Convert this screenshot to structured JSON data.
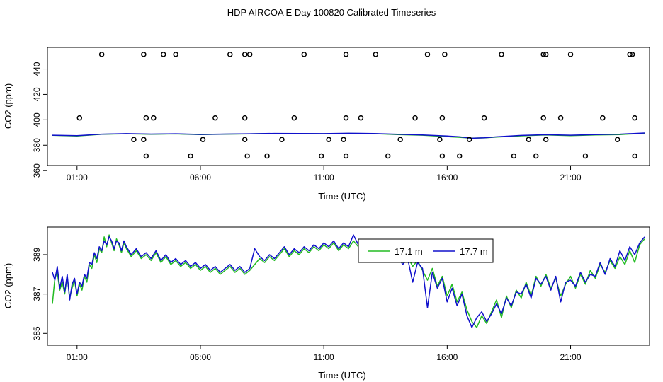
{
  "title": "HDP AIRCOA E  Day 100820  Calibrated Timeseries",
  "colors": {
    "green": "#22bb22",
    "blue": "#1010cc",
    "frame": "#000000"
  },
  "chart_data": [
    {
      "type": "line",
      "xlabel": "Time (UTC)",
      "ylabel": "CO2 (ppm)",
      "x_ticks": [
        1,
        6,
        11,
        16,
        21
      ],
      "x_tick_labels": [
        "01:00",
        "06:00",
        "11:00",
        "16:00",
        "21:00"
      ],
      "xlim": [
        -0.2,
        24.2
      ],
      "y_ticks": [
        360,
        380,
        400,
        420,
        440
      ],
      "y_tick_labels": [
        "360",
        "380",
        "400",
        "420",
        "440"
      ],
      "ylim": [
        364,
        457
      ],
      "series": [
        {
          "color": "#22bb22",
          "x": [
            0,
            1,
            2,
            3,
            4,
            5,
            6,
            7,
            8,
            9,
            10,
            11,
            12,
            13,
            14,
            15,
            16,
            16.5,
            17,
            17.5,
            18,
            19,
            20,
            21,
            22,
            23,
            24
          ],
          "values": [
            387.8,
            387.2,
            388.6,
            389.0,
            388.6,
            388.9,
            388.4,
            388.7,
            388.9,
            389.2,
            389.1,
            389.0,
            389.3,
            389.1,
            388.4,
            387.9,
            386.8,
            386.2,
            385.6,
            385.8,
            386.4,
            387.4,
            388.1,
            387.5,
            388.1,
            388.4,
            389.4
          ]
        },
        {
          "color": "#1010cc",
          "x": [
            0,
            1,
            2,
            3,
            4,
            5,
            6,
            7,
            8,
            9,
            10,
            11,
            12,
            13,
            14,
            15,
            16,
            16.5,
            17,
            17.5,
            18,
            19,
            20,
            21,
            22,
            23,
            24
          ],
          "values": [
            387.9,
            387.5,
            388.7,
            389.1,
            388.8,
            389.0,
            388.5,
            388.8,
            389.0,
            389.3,
            389.2,
            389.1,
            389.4,
            389.2,
            388.6,
            388.1,
            387.2,
            386.6,
            385.5,
            385.9,
            386.6,
            387.7,
            388.3,
            387.9,
            388.4,
            388.7,
            389.6
          ]
        }
      ],
      "markers": {
        "x": [
          1.1,
          2.0,
          4.1,
          3.7,
          3.8,
          3.7,
          3.8,
          3.3,
          4.5,
          5.0,
          6.1,
          6.6,
          5.6,
          7.2,
          7.8,
          7.8,
          7.8,
          7.9,
          8.0,
          8.7,
          9.3,
          9.8,
          10.2,
          10.9,
          11.2,
          11.9,
          11.9,
          11.9,
          11.8,
          12.5,
          13.1,
          13.6,
          14.1,
          14.7,
          15.2,
          15.7,
          15.8,
          15.8,
          15.9,
          16.5,
          16.9,
          17.5,
          18.2,
          18.7,
          19.3,
          19.6,
          19.9,
          19.9,
          20.0,
          20.0,
          20.6,
          21.0,
          21.6,
          22.3,
          22.9,
          23.4,
          23.5,
          23.6,
          23.6
        ],
        "values": [
          401.5,
          451.5,
          401.5,
          451.5,
          401.5,
          384.5,
          371.5,
          384.5,
          451.5,
          451.5,
          384.5,
          401.5,
          371.5,
          451.5,
          451.5,
          401.5,
          384.5,
          371.5,
          451.5,
          371.5,
          384.5,
          401.5,
          451.5,
          371.5,
          384.5,
          401.5,
          451.5,
          371.5,
          384.5,
          401.5,
          451.5,
          371.5,
          384.5,
          401.5,
          451.5,
          384.5,
          371.5,
          401.5,
          451.5,
          371.5,
          384.5,
          401.5,
          451.5,
          371.5,
          384.5,
          371.5,
          401.5,
          451.5,
          384.5,
          451.5,
          401.5,
          451.5,
          371.5,
          401.5,
          384.5,
          451.5,
          451.5,
          401.5,
          371.5
        ]
      }
    },
    {
      "type": "line",
      "xlabel": "Time (UTC)",
      "ylabel": "CO2 (ppm)",
      "x_ticks": [
        1,
        6,
        11,
        16,
        21
      ],
      "x_tick_labels": [
        "01:00",
        "06:00",
        "11:00",
        "16:00",
        "21:00"
      ],
      "xlim": [
        -0.2,
        24.2
      ],
      "y_ticks": [
        385,
        387,
        389
      ],
      "y_tick_labels": [
        "385",
        "387",
        "389"
      ],
      "ylim": [
        384.4,
        390.4
      ],
      "legend": {
        "position": "top-center",
        "labels": [
          "17.1 m",
          "17.7 m"
        ]
      },
      "series": [
        {
          "name": "17.1 m",
          "color": "#22bb22",
          "x": [
            0.0,
            0.1,
            0.2,
            0.3,
            0.4,
            0.5,
            0.6,
            0.7,
            0.8,
            0.9,
            1.0,
            1.1,
            1.2,
            1.3,
            1.4,
            1.5,
            1.6,
            1.7,
            1.8,
            1.9,
            2.0,
            2.1,
            2.2,
            2.3,
            2.4,
            2.5,
            2.6,
            2.7,
            2.8,
            2.9,
            3.0,
            3.2,
            3.4,
            3.6,
            3.8,
            4.0,
            4.2,
            4.4,
            4.6,
            4.8,
            5.0,
            5.2,
            5.4,
            5.6,
            5.8,
            6.0,
            6.2,
            6.4,
            6.6,
            6.8,
            7.0,
            7.2,
            7.4,
            7.6,
            7.8,
            8.0,
            8.2,
            8.4,
            8.6,
            8.8,
            9.0,
            9.2,
            9.4,
            9.6,
            9.8,
            10.0,
            10.2,
            10.4,
            10.6,
            10.8,
            11.0,
            11.2,
            11.4,
            11.6,
            11.8,
            12.0,
            12.2,
            12.4,
            12.6,
            12.8,
            13.0,
            13.2,
            13.4,
            13.6,
            13.8,
            14.0,
            14.2,
            14.4,
            14.6,
            14.8,
            15.0,
            15.2,
            15.4,
            15.6,
            15.8,
            16.0,
            16.2,
            16.4,
            16.6,
            16.8,
            17.0,
            17.2,
            17.4,
            17.6,
            17.8,
            18.0,
            18.2,
            18.4,
            18.6,
            18.8,
            19.0,
            19.2,
            19.4,
            19.6,
            19.8,
            20.0,
            20.2,
            20.4,
            20.6,
            20.8,
            21.0,
            21.2,
            21.4,
            21.6,
            21.8,
            22.0,
            22.2,
            22.4,
            22.6,
            22.8,
            23.0,
            23.2,
            23.4,
            23.6,
            23.8,
            24.0
          ],
          "values": [
            386.5,
            387.8,
            388.1,
            387.2,
            387.6,
            387.0,
            387.9,
            386.8,
            387.3,
            387.7,
            386.9,
            387.5,
            387.2,
            387.9,
            387.6,
            388.5,
            388.3,
            389.0,
            388.6,
            389.3,
            389.1,
            389.9,
            389.4,
            390.0,
            389.6,
            389.2,
            389.8,
            389.5,
            389.1,
            389.6,
            389.3,
            388.9,
            389.2,
            388.8,
            389.0,
            388.7,
            389.1,
            388.6,
            388.9,
            388.5,
            388.7,
            388.4,
            388.6,
            388.3,
            388.5,
            388.2,
            388.4,
            388.1,
            388.3,
            388.0,
            388.2,
            388.4,
            388.1,
            388.3,
            388.0,
            388.2,
            388.5,
            388.8,
            388.6,
            388.9,
            388.7,
            389.0,
            389.3,
            388.9,
            389.2,
            389.0,
            389.3,
            389.1,
            389.4,
            389.2,
            389.5,
            389.3,
            389.6,
            389.2,
            389.5,
            389.3,
            389.7,
            389.4,
            389.6,
            389.2,
            389.5,
            389.1,
            388.9,
            389.3,
            388.8,
            389.0,
            388.6,
            388.9,
            388.4,
            388.7,
            388.2,
            387.7,
            388.3,
            387.4,
            387.9,
            386.9,
            387.5,
            386.6,
            387.1,
            386.2,
            385.6,
            385.3,
            385.9,
            385.5,
            386.1,
            386.7,
            385.8,
            386.9,
            386.3,
            387.2,
            386.8,
            387.6,
            386.9,
            387.9,
            387.4,
            388.0,
            387.3,
            387.8,
            386.9,
            387.5,
            387.9,
            387.3,
            388.0,
            387.5,
            388.2,
            387.8,
            388.5,
            388.1,
            388.7,
            388.3,
            388.9,
            388.5,
            389.2,
            388.6,
            389.5,
            389.8
          ]
        },
        {
          "name": "17.7 m",
          "color": "#1010cc",
          "x": [
            0.0,
            0.1,
            0.2,
            0.3,
            0.4,
            0.5,
            0.6,
            0.7,
            0.8,
            0.9,
            1.0,
            1.1,
            1.2,
            1.3,
            1.4,
            1.5,
            1.6,
            1.7,
            1.8,
            1.9,
            2.0,
            2.1,
            2.2,
            2.3,
            2.4,
            2.5,
            2.6,
            2.7,
            2.8,
            2.9,
            3.0,
            3.2,
            3.4,
            3.6,
            3.8,
            4.0,
            4.2,
            4.4,
            4.6,
            4.8,
            5.0,
            5.2,
            5.4,
            5.6,
            5.8,
            6.0,
            6.2,
            6.4,
            6.6,
            6.8,
            7.0,
            7.2,
            7.4,
            7.6,
            7.8,
            8.0,
            8.2,
            8.4,
            8.6,
            8.8,
            9.0,
            9.2,
            9.4,
            9.6,
            9.8,
            10.0,
            10.2,
            10.4,
            10.6,
            10.8,
            11.0,
            11.2,
            11.4,
            11.6,
            11.8,
            12.0,
            12.2,
            12.4,
            12.6,
            12.8,
            13.0,
            13.2,
            13.4,
            13.6,
            13.8,
            14.0,
            14.2,
            14.4,
            14.6,
            14.8,
            15.0,
            15.2,
            15.4,
            15.6,
            15.8,
            16.0,
            16.2,
            16.4,
            16.6,
            16.8,
            17.0,
            17.2,
            17.4,
            17.6,
            17.8,
            18.0,
            18.2,
            18.4,
            18.6,
            18.8,
            19.0,
            19.2,
            19.4,
            19.6,
            19.8,
            20.0,
            20.2,
            20.4,
            20.6,
            20.8,
            21.0,
            21.2,
            21.4,
            21.6,
            21.8,
            22.0,
            22.2,
            22.4,
            22.6,
            22.8,
            23.0,
            23.2,
            23.4,
            23.6,
            23.8,
            24.0
          ],
          "values": [
            388.1,
            387.7,
            388.4,
            387.3,
            387.9,
            387.1,
            388.0,
            386.7,
            387.5,
            387.8,
            387.0,
            387.6,
            387.4,
            388.0,
            387.8,
            388.6,
            388.5,
            389.1,
            388.8,
            389.4,
            389.2,
            389.7,
            389.5,
            389.9,
            389.7,
            389.3,
            389.7,
            389.6,
            389.2,
            389.7,
            389.4,
            389.0,
            389.3,
            388.9,
            389.1,
            388.8,
            389.2,
            388.7,
            389.0,
            388.6,
            388.8,
            388.5,
            388.7,
            388.4,
            388.6,
            388.3,
            388.5,
            388.2,
            388.4,
            388.1,
            388.3,
            388.5,
            388.2,
            388.4,
            388.1,
            388.3,
            389.3,
            388.9,
            388.7,
            389.0,
            388.8,
            389.1,
            389.4,
            389.0,
            389.3,
            389.1,
            389.4,
            389.2,
            389.5,
            389.3,
            389.6,
            389.4,
            389.7,
            389.3,
            389.6,
            389.4,
            390.0,
            389.5,
            389.5,
            389.3,
            389.6,
            389.0,
            389.0,
            389.2,
            388.7,
            388.9,
            388.5,
            388.8,
            387.6,
            388.6,
            388.3,
            386.3,
            388.1,
            387.3,
            387.8,
            386.6,
            387.3,
            386.4,
            387.0,
            385.9,
            385.3,
            385.8,
            386.1,
            385.6,
            386.0,
            386.5,
            386.0,
            386.8,
            386.4,
            387.1,
            387.0,
            387.5,
            386.8,
            387.8,
            387.5,
            387.9,
            387.2,
            387.9,
            386.6,
            387.6,
            387.7,
            387.4,
            388.1,
            387.6,
            388.0,
            387.9,
            388.6,
            388.0,
            388.8,
            388.4,
            389.2,
            388.7,
            389.4,
            389.0,
            389.6,
            389.9
          ]
        }
      ]
    }
  ]
}
